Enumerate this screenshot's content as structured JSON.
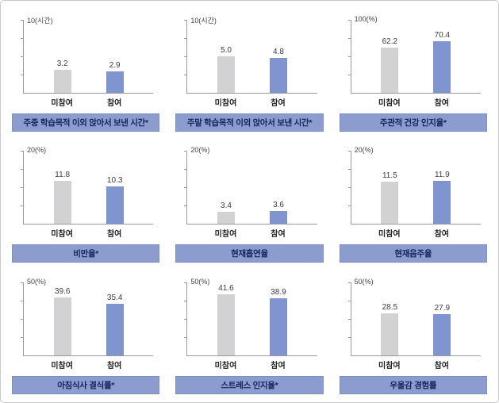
{
  "colors": {
    "bar_nonparticipant": "#d2d2d4",
    "bar_participant": "#8094d0",
    "title_bg": "#8c9cce",
    "title_text": "#14245a",
    "axis": "#9a9a9a"
  },
  "chart_data": [
    {
      "type": "bar",
      "title": "주중 학습목적 이외 앉아서 보낸 시간*",
      "axis_label": "10(시간)",
      "ylabel": "시간",
      "ylim": [
        0,
        10
      ],
      "categories": [
        "미참여",
        "참여"
      ],
      "values": [
        3.2,
        2.9
      ],
      "value_labels": [
        "3.2",
        "2.9"
      ]
    },
    {
      "type": "bar",
      "title": "주말 학습목적 이외 앉아서 보낸 시간*",
      "axis_label": "10(시간)",
      "ylabel": "시간",
      "ylim": [
        0,
        10
      ],
      "categories": [
        "미참여",
        "참여"
      ],
      "values": [
        5.0,
        4.8
      ],
      "value_labels": [
        "5.0",
        "4.8"
      ]
    },
    {
      "type": "bar",
      "title": "주관적 건강 인지율*",
      "axis_label": "100(%)",
      "ylabel": "%",
      "ylim": [
        0,
        100
      ],
      "categories": [
        "미참여",
        "참여"
      ],
      "values": [
        62.2,
        70.4
      ],
      "value_labels": [
        "62.2",
        "70.4"
      ]
    },
    {
      "type": "bar",
      "title": "비만율*",
      "axis_label": "20(%)",
      "ylabel": "%",
      "ylim": [
        0,
        20
      ],
      "categories": [
        "미참여",
        "참여"
      ],
      "values": [
        11.8,
        10.3
      ],
      "value_labels": [
        "11.8",
        "10.3"
      ]
    },
    {
      "type": "bar",
      "title": "현재흡연율",
      "axis_label": "20(%)",
      "ylabel": "%",
      "ylim": [
        0,
        20
      ],
      "categories": [
        "미참여",
        "참여"
      ],
      "values": [
        3.4,
        3.6
      ],
      "value_labels": [
        "3.4",
        "3.6"
      ]
    },
    {
      "type": "bar",
      "title": "현재음주율",
      "axis_label": "20(%)",
      "ylabel": "%",
      "ylim": [
        0,
        20
      ],
      "categories": [
        "미참여",
        "참여"
      ],
      "values": [
        11.5,
        11.9
      ],
      "value_labels": [
        "11.5",
        "11.9"
      ]
    },
    {
      "type": "bar",
      "title": "아침식사 결식률*",
      "axis_label": "50(%)",
      "ylabel": "%",
      "ylim": [
        0,
        50
      ],
      "categories": [
        "미참여",
        "참여"
      ],
      "values": [
        39.6,
        35.4
      ],
      "value_labels": [
        "39.6",
        "35.4"
      ]
    },
    {
      "type": "bar",
      "title": "스트레스 인지율*",
      "axis_label": "50(%)",
      "ylabel": "%",
      "ylim": [
        0,
        50
      ],
      "categories": [
        "미참여",
        "참여"
      ],
      "values": [
        41.6,
        38.9
      ],
      "value_labels": [
        "41.6",
        "38.9"
      ]
    },
    {
      "type": "bar",
      "title": "우울감 경험률",
      "axis_label": "50(%)",
      "ylabel": "%",
      "ylim": [
        0,
        50
      ],
      "categories": [
        "미참여",
        "참여"
      ],
      "values": [
        28.5,
        27.9
      ],
      "value_labels": [
        "28.5",
        "27.9"
      ]
    }
  ]
}
